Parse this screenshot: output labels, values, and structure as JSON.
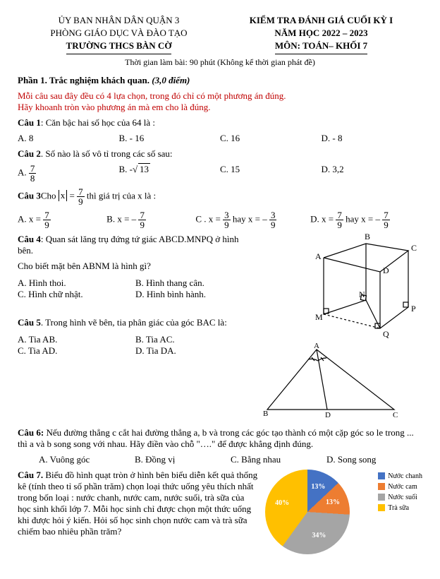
{
  "header": {
    "left": {
      "l1": "ỦY BAN NHÂN DÂN QUẬN 3",
      "l2": "PHÒNG GIÁO DỤC VÀ ĐÀO TẠO",
      "l3": "TRƯỜNG THCS BÀN CỜ"
    },
    "right": {
      "l1": "KIỂM TRA ĐÁNH GIÁ CUỐI KỲ I",
      "l2": "NĂM HỌC 2022 – 2023",
      "l3": "MÔN: TOÁN– KHỐI 7"
    },
    "time": "Thời gian làm bài: 90 phút (Không kể thời gian phát đề)"
  },
  "part1": {
    "title": "Phần 1. Trắc nghiệm khách quan.",
    "score": "(3,0 điểm)",
    "instr1": "Mỗi câu sau đây đều có 4 lựa chọn, trong đó chỉ có một phương án đúng.",
    "instr2": "Hãy khoanh tròn vào phương án mà em cho là đúng."
  },
  "q1": {
    "stem_b": "Câu 1",
    "stem": ": Căn bậc hai số học của 64 là :",
    "a": "A.  8",
    "b": "B. - 16",
    "c": "C.  16",
    "d": "D. - 8"
  },
  "q2": {
    "stem_b": "Câu 2",
    "stem": ". Số nào là số vô tỉ trong các số sau:",
    "a": "A.  ",
    "b": "B.  -",
    "c": "C. 15",
    "d": "D. 3,2",
    "a_num": "7",
    "a_den": "8",
    "b_rad": "13"
  },
  "q3": {
    "stem_b": "Câu 3",
    "stem_pre": "Cho ",
    "stem_eq": " = ",
    "stem_post": "  thì giá trị của x là :",
    "eq_num": "7",
    "eq_den": "9",
    "a": "A.   x = ",
    "a_n": "7",
    "a_d": "9",
    "b": "B.   x = – ",
    "b_n": "7",
    "b_d": "9",
    "c": "C . x = ",
    "c_n1": "3",
    "c_d1": "9",
    "c_mid": " hay x = – ",
    "c_n2": "3",
    "c_d2": "9",
    "d": "D.   x = ",
    "d_n1": "7",
    "d_d1": "9",
    "d_mid": " hay x = – ",
    "d_n2": "7",
    "d_d2": "9"
  },
  "q4": {
    "stem_b": "Câu 4",
    "stem": ": Quan sát lăng trụ đứng tứ giác ABCD.MNPQ  ở hình bên.",
    "sub": "Cho biết mặt bên ABNM là hình gì?",
    "a": "A. Hình thoi.",
    "b": "B. Hình thang cân.",
    "c": "C. Hình chữ nhật.",
    "d": "D. Hình bình hành.",
    "labels": {
      "A": "A",
      "B": "B",
      "C": "C",
      "D": "D",
      "M": "M",
      "N": "N",
      "P": "P",
      "Q": "Q"
    }
  },
  "q5": {
    "stem_b": "Câu 5",
    "stem": ". Trong hình vẽ bên, tia phân giác của góc BAC là:",
    "a": "A. Tia AB.",
    "b": "B. Tia AC.",
    "c": "C. Tia AD.",
    "d": "D. Tia DA.",
    "labels": {
      "A": "A",
      "B": "B",
      "C": "C",
      "D": "D"
    }
  },
  "q6": {
    "stem_b": "Câu 6:",
    "stem": " Nếu đường thẳng c cắt hai đường thẳng a, b và trong các góc tạo thành có một cặp góc so le trong ... thì a và b song song với nhau. Hãy điền vào chỗ \"….\" để được khẳng định đúng.",
    "a": "A. Vuông góc",
    "b": "B. Đồng vị",
    "c": "C. Bằng nhau",
    "d": "D. Song song"
  },
  "q7": {
    "stem_b": "Câu 7.",
    "stem": " Biểu đồ hình quạt tròn ở hình bên biểu diễn kết quả thống kê (tính theo tỉ số phần trăm) chọn loại thức uống yêu thích nhất trong bốn loại : nước chanh, nước cam, nước suối, trà sữa của học sinh khối lớp 7. Mỗi học sinh chỉ được chọn một thức uống khi được hỏi ý kiến. Hỏi số học sinh chọn nước cam và trà sữa chiếm bao   nhiêu phần trăm?",
    "chart": {
      "slices": [
        {
          "label": "Nước chanh",
          "value": 13,
          "color": "#4472c4"
        },
        {
          "label": "Nước cam",
          "value": 13,
          "color": "#ed7d31"
        },
        {
          "label": "Nước suối",
          "value": 34,
          "color": "#a5a5a5"
        },
        {
          "label": "Trà sữa",
          "value": 40,
          "color": "#ffc000"
        }
      ],
      "label_fontsize": 10,
      "label_color": "#ffffff",
      "legend_prefix": "■ "
    }
  }
}
